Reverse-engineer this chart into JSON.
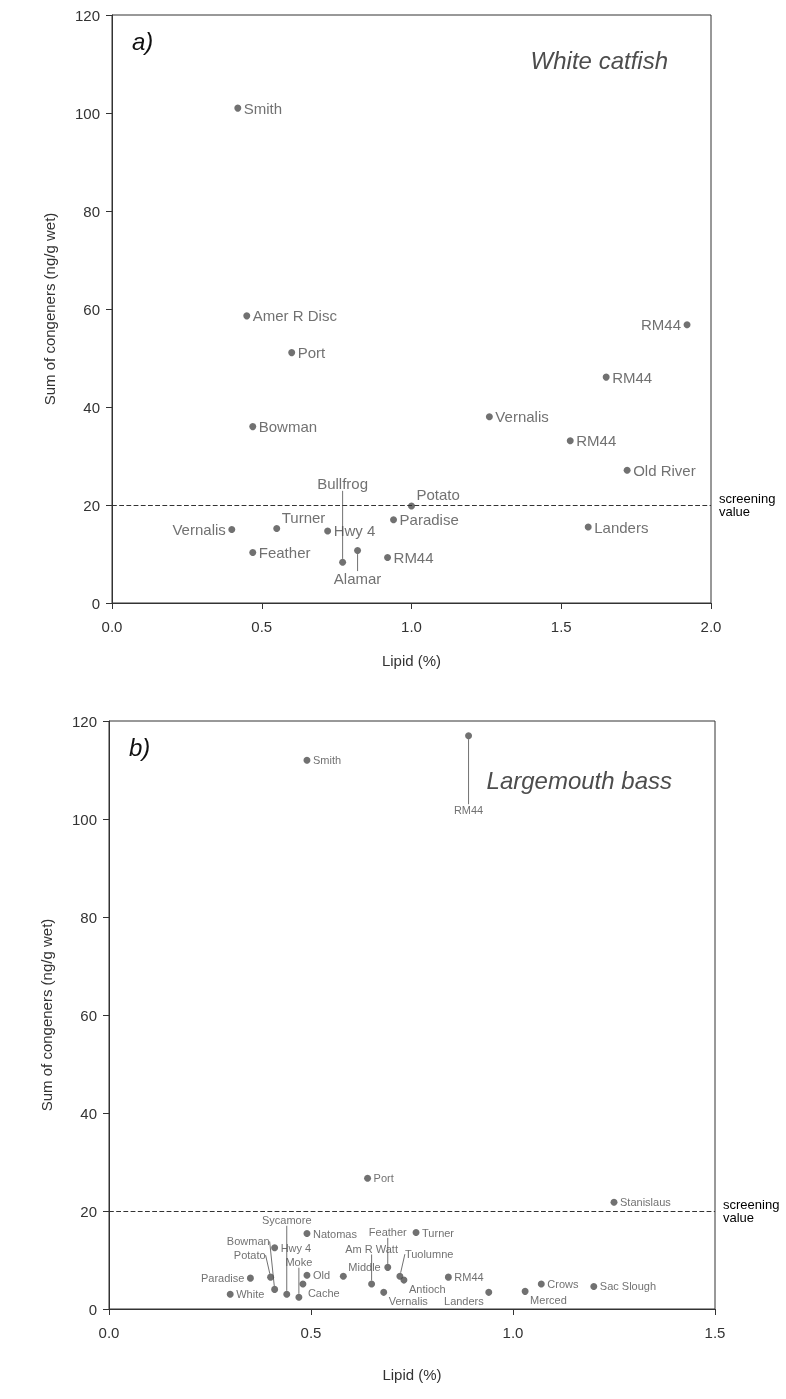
{
  "chart_data": [
    {
      "type": "scatter",
      "title": "White catfish",
      "xlabel": "Lipid (%)",
      "ylabel": "Sum of congeners (ng/g wet)",
      "marker": "circle",
      "grid": false,
      "xlim": [
        0,
        2
      ],
      "xticks": [
        {
          "value": 0,
          "label": "0.0"
        },
        {
          "value": 0.5,
          "label": "0.5"
        },
        {
          "value": 1,
          "label": "1.0"
        },
        {
          "value": 1.5,
          "label": "1.5"
        },
        {
          "value": 2,
          "label": "2.0"
        }
      ],
      "ylim": [
        0,
        120
      ],
      "yticks": [
        0,
        20,
        40,
        60,
        80,
        100,
        120
      ],
      "series": [
        {
          "color": "#4d4d4d",
          "x": [
            0.42,
            0.45,
            0.6,
            0.47,
            1.26,
            1.92,
            1.65,
            1.53,
            1.72,
            1.0,
            0.94,
            1.59,
            0.4,
            0.55,
            0.72,
            0.47,
            0.82,
            0.92,
            0.77
          ],
          "values": [
            101,
            58.6,
            51.1,
            36.0,
            38.0,
            56.8,
            46.1,
            33.1,
            27.1,
            19.8,
            17.0,
            15.5,
            15.0,
            15.2,
            14.7,
            10.3,
            10.7,
            9.3,
            8.3
          ]
        }
      ],
      "ref_lines": [
        {
          "axis": "y",
          "value": 20,
          "label": "screening value",
          "color": "#333333",
          "line_style": "dashed"
        }
      ],
      "annotations": [
        "a)",
        {
          "text": "Smith",
          "x": 0.42,
          "y": 101
        },
        {
          "text": "Amer R Disc",
          "x": 0.45,
          "y": 58.6
        },
        {
          "text": "Port",
          "x": 0.6,
          "y": 51.1
        },
        {
          "text": "Bowman",
          "x": 0.47,
          "y": 36.0
        },
        {
          "text": "Vernalis",
          "x": 1.26,
          "y": 38.0
        },
        {
          "text": "RM44",
          "x": 1.92,
          "y": 56.8
        },
        {
          "text": "RM44",
          "x": 1.65,
          "y": 46.1
        },
        {
          "text": "RM44",
          "x": 1.53,
          "y": 33.1
        },
        {
          "text": "Old River",
          "x": 1.72,
          "y": 27.1
        },
        {
          "text": "Potato",
          "x": 1.0,
          "y": 19.8
        },
        {
          "text": "Paradise",
          "x": 0.94,
          "y": 17.0
        },
        {
          "text": "Landers",
          "x": 1.59,
          "y": 15.5
        },
        {
          "text": "Vernalis",
          "x": 0.4,
          "y": 15.0
        },
        {
          "text": "Turner",
          "x": 0.55,
          "y": 15.2
        },
        {
          "text": "Hwy 4",
          "x": 0.72,
          "y": 14.7
        },
        {
          "text": "Feather",
          "x": 0.47,
          "y": 10.3
        },
        {
          "text": "Alamar",
          "x": 0.82,
          "y": 10.7
        },
        {
          "text": "RM44",
          "x": 0.92,
          "y": 9.3
        },
        {
          "text": "Bullfrog",
          "x": 0.77,
          "y": 8.3
        }
      ]
    },
    {
      "type": "scatter",
      "title": "Largemouth bass",
      "xlabel": "Lipid (%)",
      "ylabel": "Sum of congeners (ng/g wet)",
      "marker": "circle",
      "grid": false,
      "xlim": [
        0,
        1.5
      ],
      "xticks": [
        {
          "value": 0,
          "label": "0.0"
        },
        {
          "value": 0.5,
          "label": "0.5"
        },
        {
          "value": 1,
          "label": "1.0"
        },
        {
          "value": 1.5,
          "label": "1.5"
        }
      ],
      "ylim": [
        0,
        120
      ],
      "yticks": [
        0,
        20,
        40,
        60,
        80,
        100,
        120
      ],
      "series": [
        {
          "color": "#4d4d4d",
          "x": [
            0.89,
            0.49,
            0.64,
            1.25,
            0.49,
            0.76,
            0.41,
            0.35,
            0.4,
            0.49,
            0.48,
            0.3,
            0.41,
            0.44,
            0.47,
            0.58,
            0.65,
            0.69,
            0.72,
            0.73,
            0.84,
            0.68,
            0.94,
            1.03,
            1.07,
            1.2
          ],
          "values": [
            117,
            112,
            26.7,
            21.8,
            15.4,
            15.6,
            12.5,
            6.3,
            6.5,
            6.9,
            5.1,
            3.0,
            4.0,
            3.0,
            2.4,
            6.7,
            5.1,
            8.5,
            6.7,
            5.9,
            6.5,
            3.4,
            3.4,
            3.6,
            5.1,
            4.6
          ]
        }
      ],
      "ref_lines": [
        {
          "axis": "y",
          "value": 20,
          "label": "screening value",
          "color": "#333333",
          "line_style": "dashed"
        }
      ],
      "annotations": [
        "b)",
        {
          "text": "RM44",
          "x": 0.89,
          "y": 117
        },
        {
          "text": "Smith",
          "x": 0.49,
          "y": 112
        },
        {
          "text": "Port",
          "x": 0.64,
          "y": 26.7
        },
        {
          "text": "Stanislaus",
          "x": 1.25,
          "y": 21.8
        },
        {
          "text": "Natomas",
          "x": 0.49,
          "y": 15.4
        },
        {
          "text": "Turner",
          "x": 0.76,
          "y": 15.6
        },
        {
          "text": "Hwy 4",
          "x": 0.41,
          "y": 12.5
        },
        {
          "text": "Paradise",
          "x": 0.35,
          "y": 6.3
        },
        {
          "text": "Potato",
          "x": 0.4,
          "y": 6.5
        },
        {
          "text": "Old",
          "x": 0.49,
          "y": 6.9
        },
        {
          "text": "Cache",
          "x": 0.48,
          "y": 5.1
        },
        {
          "text": "White",
          "x": 0.3,
          "y": 3.0
        },
        {
          "text": "Bowman",
          "x": 0.41,
          "y": 4.0
        },
        {
          "text": "Sycamore",
          "x": 0.44,
          "y": 3.0
        },
        {
          "text": "Moke",
          "x": 0.47,
          "y": 2.4
        },
        {
          "text": "Middle",
          "x": 0.58,
          "y": 6.7
        },
        {
          "text": "Am R Watt",
          "x": 0.65,
          "y": 5.1
        },
        {
          "text": "Feather",
          "x": 0.69,
          "y": 8.5
        },
        {
          "text": "Tuolumne",
          "x": 0.72,
          "y": 6.7
        },
        {
          "text": "Antioch",
          "x": 0.73,
          "y": 5.9
        },
        {
          "text": "RM44",
          "x": 0.84,
          "y": 6.5
        },
        {
          "text": "Vernalis",
          "x": 0.68,
          "y": 3.4
        },
        {
          "text": "Landers",
          "x": 0.94,
          "y": 3.4
        },
        {
          "text": "Merced",
          "x": 1.03,
          "y": 3.6
        },
        {
          "text": "Crows",
          "x": 1.07,
          "y": 5.1
        },
        {
          "text": "Sac Slough",
          "x": 1.2,
          "y": 4.6
        }
      ]
    }
  ]
}
